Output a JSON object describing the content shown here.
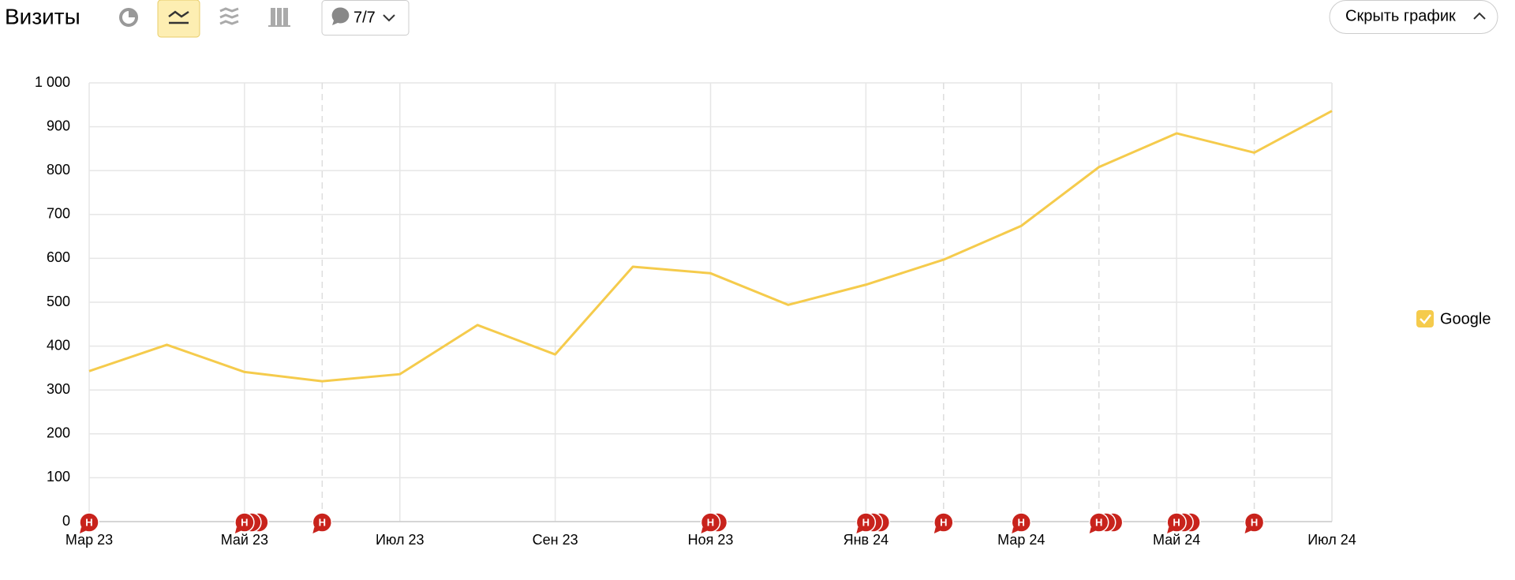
{
  "chart_data": {
    "type": "line",
    "title": "Визиты",
    "categories": [
      "Мар 23",
      null,
      "Май 23",
      null,
      "Июл 23",
      null,
      "Сен 23",
      null,
      "Ноя 23",
      null,
      "Янв 24",
      null,
      "Мар 24",
      null,
      "Май 24",
      null,
      "Июл 24"
    ],
    "series": [
      {
        "name": "Google",
        "color": "#f5cb4c",
        "values": [
          343,
          403,
          341,
          320,
          336,
          448,
          381,
          581,
          566,
          494,
          540,
          597,
          674,
          808,
          885,
          841,
          936
        ]
      }
    ],
    "ylim": [
      0,
      1000
    ],
    "yticks": [
      0,
      100,
      200,
      300,
      400,
      500,
      600,
      700,
      800,
      900,
      {
        "value": 1000,
        "label": "1 000"
      }
    ],
    "grid": true,
    "annotations": [
      {
        "x": 0,
        "count": 1,
        "label": "Н"
      },
      {
        "x": 2,
        "count": 3,
        "label": "Н"
      },
      {
        "x": 3,
        "count": 1,
        "label": "Н"
      },
      {
        "x": 8,
        "count": 2,
        "label": "Н"
      },
      {
        "x": 10,
        "count": 3,
        "label": "Н"
      },
      {
        "x": 11,
        "count": 1,
        "label": "Н"
      },
      {
        "x": 12,
        "count": 1,
        "label": "Н"
      },
      {
        "x": 13,
        "count": 3,
        "label": "Н"
      },
      {
        "x": 14,
        "count": 3,
        "label": "Н"
      },
      {
        "x": 15,
        "count": 1,
        "label": "Н"
      }
    ]
  },
  "ui": {
    "comments_filter": "7/7",
    "hide_chart_button": "Скрыть график"
  }
}
